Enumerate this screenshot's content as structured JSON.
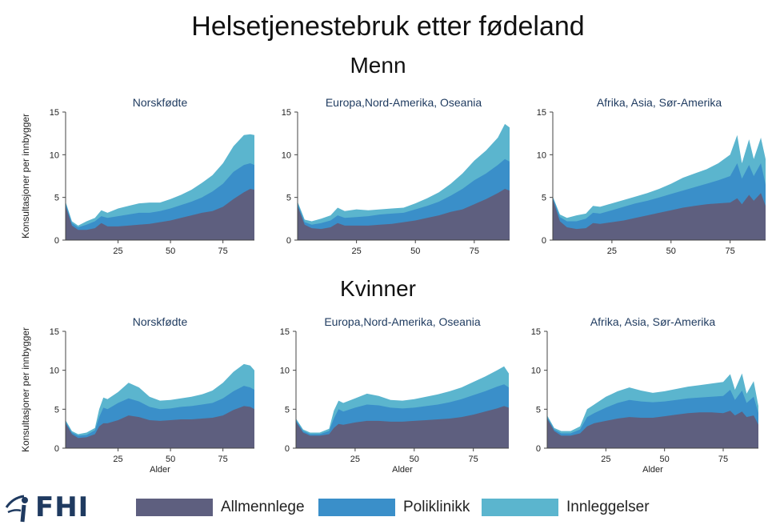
{
  "title": "Helsetjenestebruk etter fødeland",
  "sections": [
    {
      "title": "Menn"
    },
    {
      "title": "Kvinner"
    }
  ],
  "colors": {
    "Allmennlege": "#5e5f7f",
    "Poliklinikk": "#3a8fc9",
    "Innleggelser": "#5bb5ce"
  },
  "legend": {
    "items": [
      {
        "label": "Allmennlege",
        "color": "#5e5f7f"
      },
      {
        "label": "Poliklinikk",
        "color": "#3a8fc9"
      },
      {
        "label": "Innleggelser",
        "color": "#5bb5ce"
      }
    ]
  },
  "logo": {
    "text": "FHI",
    "icon": "fhi-logo-icon"
  },
  "chart_data": [
    {
      "type": "area",
      "section": "Menn",
      "title": "Norskfødte",
      "ylabel": "Konsultasjoner per innbygger",
      "xlabel": "",
      "ylim": [
        0,
        15
      ],
      "yticks": [
        0,
        5,
        10,
        15
      ],
      "xticks": [
        25,
        50,
        75
      ],
      "xlim": [
        0,
        90
      ],
      "x": [
        0,
        3,
        6,
        10,
        14,
        17,
        20,
        25,
        30,
        35,
        40,
        45,
        50,
        55,
        60,
        65,
        70,
        75,
        80,
        85,
        88,
        90
      ],
      "series": [
        {
          "name": "Allmennlege",
          "values": [
            4.0,
            1.7,
            1.2,
            1.2,
            1.4,
            2.0,
            1.6,
            1.6,
            1.7,
            1.8,
            1.9,
            2.1,
            2.3,
            2.6,
            2.9,
            3.2,
            3.4,
            3.9,
            4.8,
            5.6,
            6.0,
            5.9
          ]
        },
        {
          "name": "Poliklinikk",
          "values": [
            4.3,
            2.0,
            1.5,
            1.8,
            2.2,
            2.8,
            2.6,
            2.8,
            3.0,
            3.2,
            3.2,
            3.4,
            3.7,
            4.1,
            4.5,
            5.0,
            5.7,
            6.6,
            8.0,
            8.8,
            9.0,
            8.8
          ]
        },
        {
          "name": "Innleggelser",
          "values": [
            4.5,
            2.2,
            1.7,
            2.2,
            2.6,
            3.5,
            3.2,
            3.7,
            4.0,
            4.3,
            4.4,
            4.4,
            4.8,
            5.3,
            5.9,
            6.7,
            7.6,
            9.0,
            11.0,
            12.3,
            12.4,
            12.3
          ]
        }
      ]
    },
    {
      "type": "area",
      "section": "Menn",
      "title": "Europa,Nord-Amerika, Oseania",
      "ylabel": "",
      "xlabel": "",
      "ylim": [
        0,
        15
      ],
      "yticks": [
        0,
        5,
        10,
        15
      ],
      "xticks": [
        25,
        50,
        75
      ],
      "xlim": [
        0,
        90
      ],
      "x": [
        0,
        3,
        6,
        10,
        14,
        17,
        20,
        25,
        30,
        35,
        40,
        45,
        50,
        55,
        60,
        65,
        70,
        75,
        80,
        85,
        88,
        90
      ],
      "series": [
        {
          "name": "Allmennlege",
          "values": [
            4.0,
            1.8,
            1.4,
            1.3,
            1.5,
            2.0,
            1.7,
            1.7,
            1.7,
            1.8,
            1.9,
            2.1,
            2.3,
            2.6,
            2.9,
            3.3,
            3.6,
            4.2,
            4.8,
            5.5,
            6.0,
            5.8
          ]
        },
        {
          "name": "Poliklinikk",
          "values": [
            4.3,
            2.1,
            1.8,
            2.0,
            2.3,
            2.9,
            2.6,
            2.7,
            2.8,
            3.0,
            3.1,
            3.2,
            3.6,
            4.0,
            4.5,
            5.2,
            6.0,
            7.0,
            7.8,
            8.8,
            9.5,
            9.2
          ]
        },
        {
          "name": "Innleggelser",
          "values": [
            4.5,
            2.4,
            2.2,
            2.5,
            2.9,
            3.8,
            3.4,
            3.6,
            3.5,
            3.6,
            3.7,
            3.8,
            4.3,
            4.9,
            5.6,
            6.6,
            7.8,
            9.3,
            10.5,
            12.0,
            13.6,
            13.2
          ]
        }
      ]
    },
    {
      "type": "area",
      "section": "Menn",
      "title": "Afrika, Asia, Sør-Amerika",
      "ylabel": "",
      "xlabel": "",
      "ylim": [
        0,
        15
      ],
      "yticks": [
        0,
        5,
        10,
        15
      ],
      "xticks": [
        25,
        50,
        75
      ],
      "xlim": [
        0,
        90
      ],
      "x": [
        0,
        3,
        6,
        10,
        14,
        17,
        20,
        25,
        30,
        35,
        40,
        45,
        50,
        55,
        60,
        65,
        70,
        75,
        78,
        80,
        83,
        85,
        88,
        90
      ],
      "series": [
        {
          "name": "Allmennlege",
          "values": [
            4.8,
            2.2,
            1.5,
            1.3,
            1.4,
            2.0,
            1.9,
            2.1,
            2.3,
            2.6,
            2.9,
            3.2,
            3.5,
            3.8,
            4.0,
            4.2,
            4.3,
            4.4,
            4.9,
            4.2,
            5.3,
            4.6,
            5.5,
            4.0
          ]
        },
        {
          "name": "Poliklinikk",
          "values": [
            5.0,
            2.7,
            2.2,
            2.2,
            2.5,
            3.2,
            3.1,
            3.5,
            3.9,
            4.3,
            4.6,
            5.0,
            5.4,
            5.8,
            6.2,
            6.6,
            7.0,
            7.5,
            9.0,
            7.2,
            8.8,
            7.5,
            9.0,
            6.5
          ]
        },
        {
          "name": "Innleggelser",
          "values": [
            5.1,
            3.0,
            2.6,
            2.9,
            3.1,
            4.0,
            3.9,
            4.3,
            4.7,
            5.1,
            5.5,
            6.0,
            6.6,
            7.3,
            7.8,
            8.3,
            9.0,
            10.0,
            12.3,
            9.0,
            11.8,
            9.5,
            12.0,
            9.5
          ]
        }
      ]
    },
    {
      "type": "area",
      "section": "Kvinner",
      "title": "Norskfødte",
      "ylabel": "Konsultasjoner per innbygger",
      "xlabel": "Alder",
      "ylim": [
        0,
        15
      ],
      "yticks": [
        0,
        5,
        10,
        15
      ],
      "xticks": [
        25,
        50,
        75
      ],
      "xlim": [
        0,
        90
      ],
      "x": [
        0,
        3,
        6,
        10,
        14,
        16,
        18,
        20,
        25,
        30,
        35,
        40,
        45,
        50,
        55,
        60,
        65,
        70,
        75,
        80,
        85,
        88,
        90
      ],
      "series": [
        {
          "name": "Allmennlege",
          "values": [
            3.2,
            1.8,
            1.3,
            1.4,
            1.8,
            2.8,
            3.2,
            3.2,
            3.6,
            4.2,
            4.0,
            3.6,
            3.5,
            3.6,
            3.7,
            3.7,
            3.8,
            3.9,
            4.2,
            4.9,
            5.4,
            5.3,
            5.0
          ]
        },
        {
          "name": "Poliklinikk",
          "values": [
            3.4,
            2.0,
            1.6,
            1.7,
            2.3,
            4.0,
            5.2,
            5.0,
            5.8,
            6.4,
            6.0,
            5.3,
            5.0,
            5.1,
            5.3,
            5.4,
            5.6,
            5.8,
            6.4,
            7.3,
            8.0,
            7.8,
            7.5
          ]
        },
        {
          "name": "Innleggelser",
          "values": [
            3.6,
            2.2,
            1.8,
            2.0,
            2.6,
            5.0,
            6.5,
            6.3,
            7.2,
            8.4,
            7.8,
            6.6,
            6.1,
            6.2,
            6.4,
            6.6,
            6.9,
            7.4,
            8.4,
            9.8,
            10.8,
            10.6,
            10.0
          ]
        }
      ]
    },
    {
      "type": "area",
      "section": "Kvinner",
      "title": "Europa,Nord-Amerika, Oseania",
      "ylabel": "",
      "xlabel": "Alder",
      "ylim": [
        0,
        15
      ],
      "yticks": [
        0,
        5,
        10,
        15
      ],
      "xticks": [
        25,
        50,
        75
      ],
      "xlim": [
        0,
        90
      ],
      "x": [
        0,
        3,
        6,
        10,
        14,
        16,
        18,
        20,
        25,
        30,
        35,
        40,
        45,
        50,
        55,
        60,
        65,
        70,
        75,
        80,
        85,
        88,
        90
      ],
      "series": [
        {
          "name": "Allmennlege",
          "values": [
            3.4,
            2.0,
            1.6,
            1.6,
            1.8,
            2.6,
            3.1,
            3.0,
            3.3,
            3.5,
            3.5,
            3.4,
            3.4,
            3.5,
            3.6,
            3.7,
            3.8,
            4.0,
            4.3,
            4.7,
            5.1,
            5.4,
            5.2
          ]
        },
        {
          "name": "Poliklinikk",
          "values": [
            3.6,
            2.2,
            1.8,
            1.8,
            2.2,
            3.8,
            5.0,
            4.7,
            5.2,
            5.6,
            5.5,
            5.2,
            5.1,
            5.2,
            5.4,
            5.6,
            5.9,
            6.3,
            6.8,
            7.3,
            7.9,
            8.2,
            7.8
          ]
        },
        {
          "name": "Innleggelser",
          "values": [
            3.8,
            2.4,
            2.0,
            2.0,
            2.5,
            4.8,
            6.1,
            5.8,
            6.4,
            7.0,
            6.7,
            6.2,
            6.1,
            6.3,
            6.6,
            6.9,
            7.3,
            7.8,
            8.5,
            9.2,
            10.0,
            10.5,
            9.6
          ]
        }
      ]
    },
    {
      "type": "area",
      "section": "Kvinner",
      "title": "Afrika, Asia, Sør-Amerika",
      "ylabel": "",
      "xlabel": "Alder",
      "ylim": [
        0,
        15
      ],
      "yticks": [
        0,
        5,
        10,
        15
      ],
      "xticks": [
        25,
        50,
        75
      ],
      "xlim": [
        0,
        90
      ],
      "x": [
        0,
        3,
        6,
        10,
        14,
        17,
        20,
        25,
        30,
        35,
        40,
        45,
        50,
        55,
        60,
        65,
        70,
        75,
        78,
        80,
        83,
        85,
        88,
        90
      ],
      "series": [
        {
          "name": "Allmennlege",
          "values": [
            3.8,
            2.2,
            1.6,
            1.6,
            1.9,
            2.8,
            3.2,
            3.5,
            3.8,
            4.0,
            3.9,
            3.9,
            4.1,
            4.3,
            4.5,
            4.6,
            4.6,
            4.5,
            4.8,
            4.2,
            4.7,
            4.0,
            4.2,
            3.0
          ]
        },
        {
          "name": "Poliklinikk",
          "values": [
            4.0,
            2.4,
            1.9,
            1.9,
            2.4,
            4.0,
            4.5,
            5.2,
            5.8,
            6.2,
            6.0,
            5.9,
            6.0,
            6.2,
            6.4,
            6.5,
            6.6,
            6.7,
            7.5,
            6.2,
            7.4,
            5.8,
            6.6,
            4.5
          ]
        },
        {
          "name": "Innleggelser",
          "values": [
            4.2,
            2.6,
            2.2,
            2.2,
            2.8,
            5.0,
            5.6,
            6.6,
            7.3,
            7.8,
            7.4,
            7.1,
            7.3,
            7.6,
            7.9,
            8.1,
            8.3,
            8.5,
            9.5,
            7.5,
            9.6,
            7.0,
            8.6,
            5.4
          ]
        }
      ]
    }
  ]
}
